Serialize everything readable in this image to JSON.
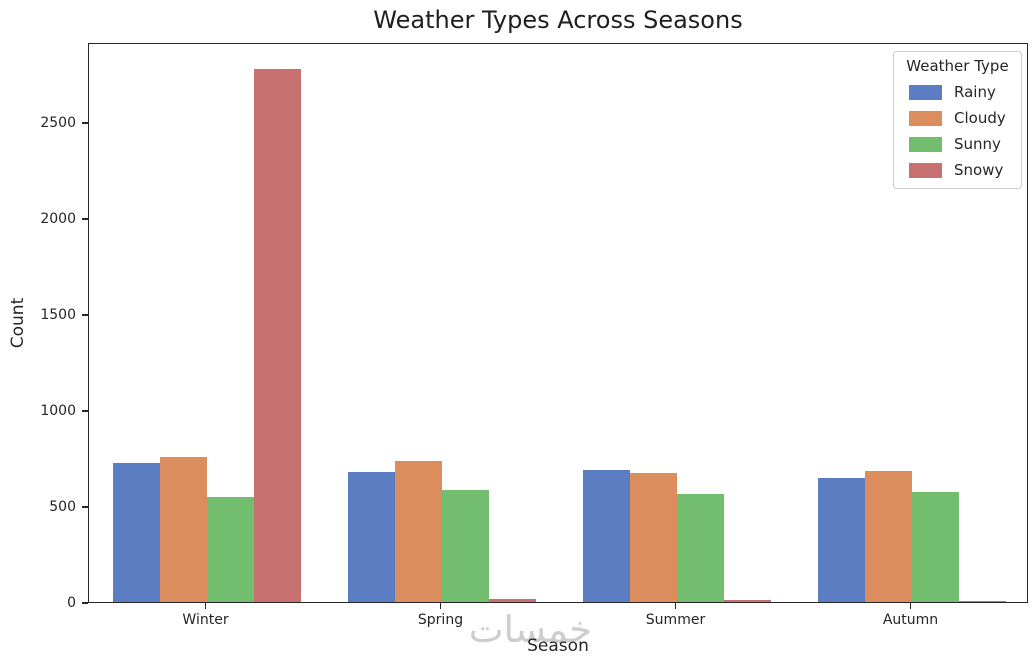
{
  "title": "Weather Types Across Seasons",
  "watermark": "خمسات",
  "chart_data": {
    "type": "bar",
    "title": "Weather Types Across Seasons",
    "xlabel": "Season",
    "ylabel": "Count",
    "categories": [
      "Winter",
      "Spring",
      "Summer",
      "Autumn"
    ],
    "series": [
      {
        "name": "Rainy",
        "color": "#5b7dc2",
        "values": [
          722,
          677,
          688,
          647
        ]
      },
      {
        "name": "Cloudy",
        "color": "#dc8d5e",
        "values": [
          755,
          735,
          672,
          683
        ]
      },
      {
        "name": "Sunny",
        "color": "#72bd6e",
        "values": [
          548,
          583,
          562,
          571
        ]
      },
      {
        "name": "Snowy",
        "color": "#c77070",
        "values": [
          2775,
          14,
          13,
          7
        ]
      }
    ],
    "ylim": [
      0,
      2917
    ],
    "y_ticks": [
      0,
      500,
      1000,
      1500,
      2000,
      2500
    ],
    "legend_title": "Weather Type",
    "legend_position": "upper right",
    "grid": false,
    "text_color": "#262626",
    "spine_color": "#262626",
    "watermark_color": "#cdcdcd"
  }
}
